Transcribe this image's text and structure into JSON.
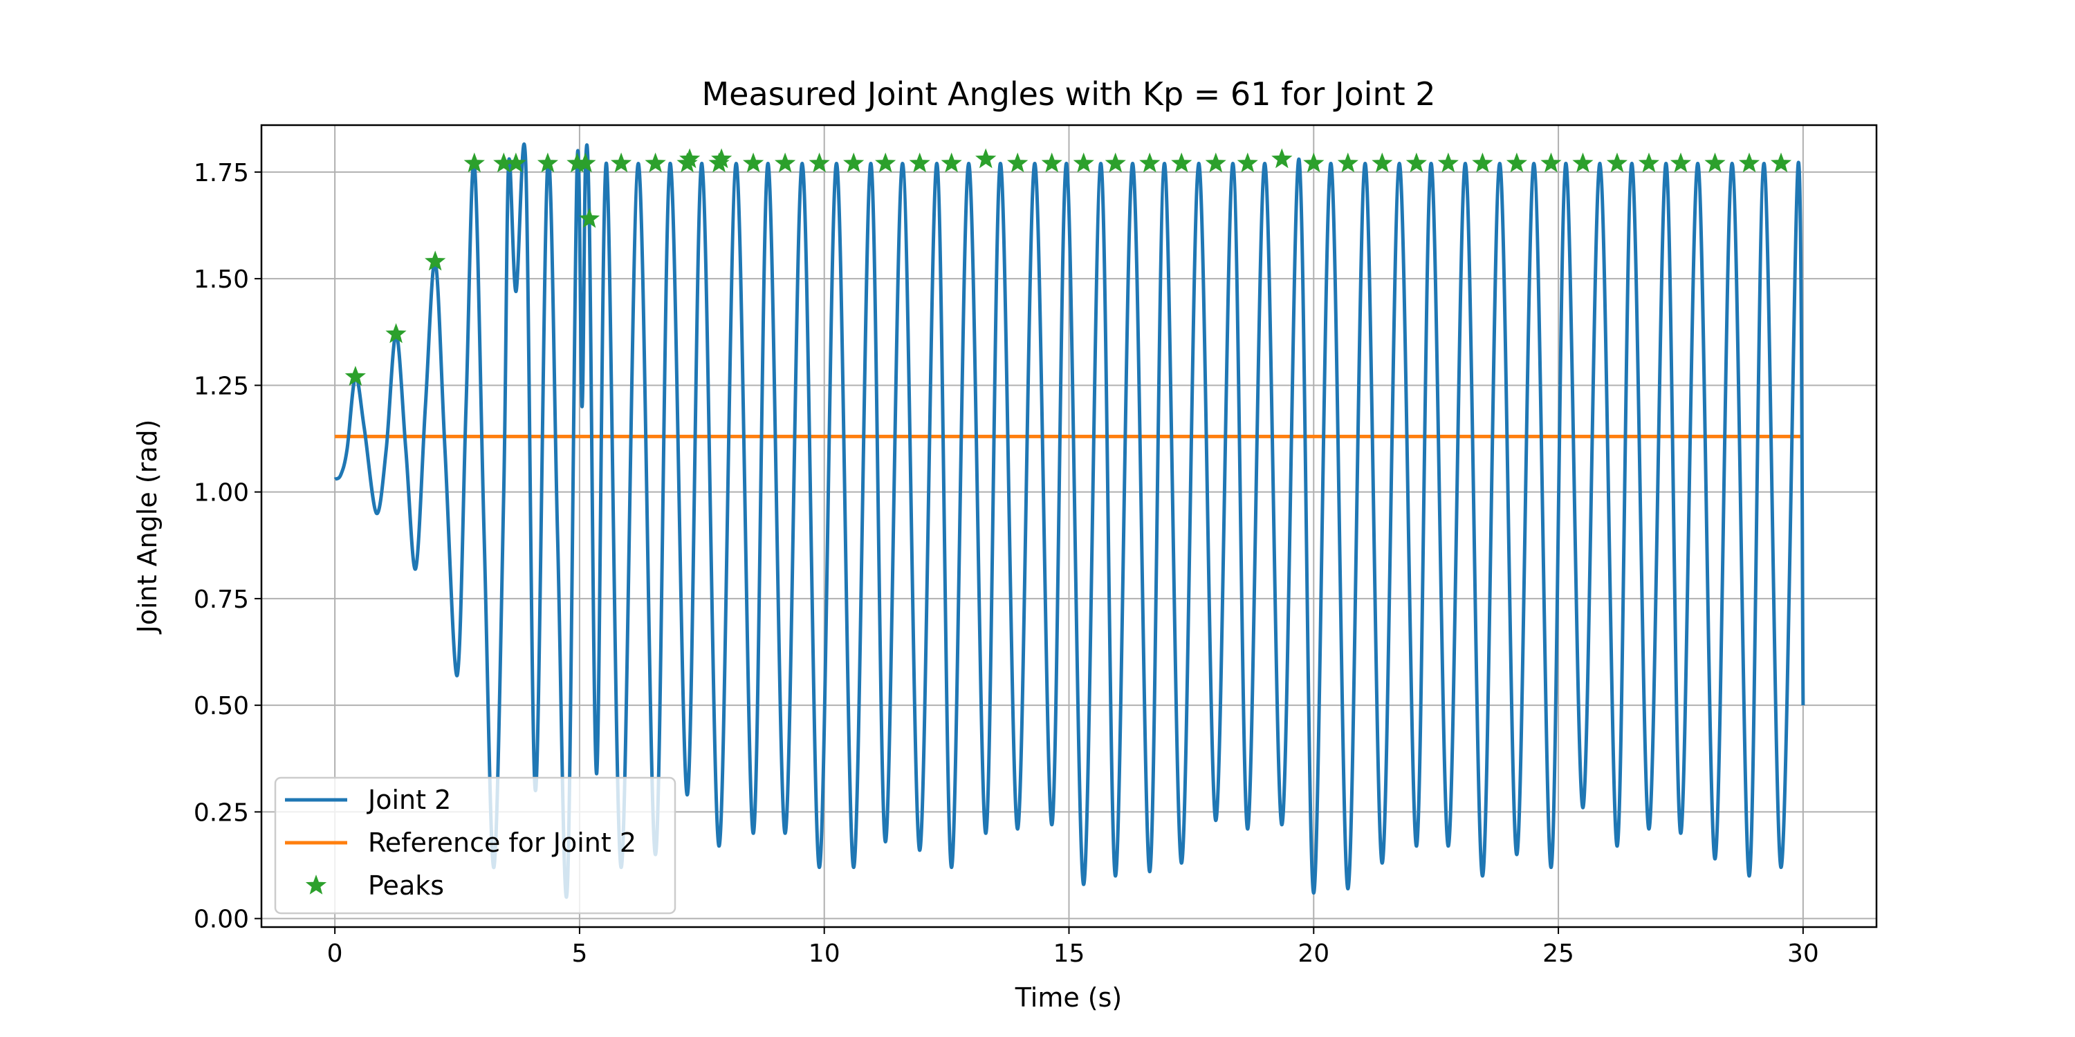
{
  "chart_data": {
    "type": "line",
    "title": "Measured Joint Angles with Kp = 61 for Joint 2",
    "xlabel": "Time (s)",
    "ylabel": "Joint Angle (rad)",
    "xlim": [
      -1.5,
      31.5
    ],
    "ylim": [
      -0.02,
      1.86
    ],
    "grid": true,
    "xticks": [
      0,
      5,
      10,
      15,
      20,
      25,
      30
    ],
    "xtick_labels": [
      "0",
      "5",
      "10",
      "15",
      "20",
      "25",
      "30"
    ],
    "yticks": [
      0.0,
      0.25,
      0.5,
      0.75,
      1.0,
      1.25,
      1.5,
      1.75
    ],
    "ytick_labels": [
      "0.00",
      "0.25",
      "0.50",
      "0.75",
      "1.00",
      "1.25",
      "1.50",
      "1.75"
    ],
    "legend_position": "lower-left",
    "colors": {
      "joint": "#1f77b4",
      "reference": "#ff7f0e",
      "peaks": "#2ca02c"
    },
    "series": [
      {
        "name": "Joint 2",
        "legend_label": "Joint 2",
        "x": [
          0,
          0.12,
          0.25,
          0.42,
          0.6,
          0.85,
          1.05,
          1.25,
          1.45,
          1.65,
          1.85,
          2.05,
          2.25,
          2.5,
          2.68,
          2.85,
          3.05,
          3.25,
          3.45,
          3.55,
          3.7,
          3.9,
          4.1,
          4.35,
          4.55,
          4.75,
          4.95,
          5.05,
          5.12,
          5.2,
          5.35,
          5.55,
          5.85,
          6.2,
          6.55,
          6.85,
          7.2,
          7.5,
          7.85,
          8.2,
          8.55,
          8.85,
          9.2,
          9.55,
          9.9,
          10.25,
          10.6,
          10.95,
          11.25,
          11.6,
          11.95,
          12.3,
          12.6,
          12.95,
          13.3,
          13.6,
          13.95,
          14.3,
          14.65,
          14.95,
          15.3,
          15.65,
          15.95,
          16.3,
          16.65,
          16.95,
          17.3,
          17.65,
          18.0,
          18.35,
          18.65,
          19.0,
          19.35,
          19.7,
          20.0,
          20.35,
          20.7,
          21.05,
          21.4,
          21.75,
          22.1,
          22.4,
          22.75,
          23.1,
          23.45,
          23.8,
          24.15,
          24.5,
          24.85,
          25.15,
          25.5,
          25.85,
          26.2,
          26.5,
          26.85,
          27.2,
          27.5,
          27.85,
          28.2,
          28.55,
          28.9,
          29.2,
          29.55,
          29.9,
          30.0
        ],
        "y": [
          1.03,
          1.04,
          1.1,
          1.27,
          1.15,
          0.95,
          1.1,
          1.37,
          1.1,
          0.82,
          1.2,
          1.54,
          1.1,
          0.57,
          1.2,
          1.77,
          0.9,
          0.12,
          1.0,
          1.77,
          1.47,
          1.77,
          0.3,
          1.77,
          0.9,
          0.07,
          1.77,
          1.2,
          1.76,
          1.63,
          0.34,
          1.77,
          0.12,
          1.77,
          0.15,
          1.77,
          0.29,
          1.77,
          0.17,
          1.77,
          0.2,
          1.77,
          0.2,
          1.77,
          0.12,
          1.77,
          0.12,
          1.77,
          0.18,
          1.77,
          0.16,
          1.77,
          0.12,
          1.77,
          0.2,
          1.77,
          0.21,
          1.77,
          0.22,
          1.77,
          0.08,
          1.77,
          0.1,
          1.77,
          0.11,
          1.77,
          0.13,
          1.77,
          0.23,
          1.77,
          0.21,
          1.77,
          0.22,
          1.78,
          0.06,
          1.77,
          0.07,
          1.77,
          0.13,
          1.77,
          0.17,
          1.77,
          0.17,
          1.77,
          0.1,
          1.77,
          0.15,
          1.77,
          0.12,
          1.77,
          0.26,
          1.77,
          0.17,
          1.77,
          0.21,
          1.77,
          0.2,
          1.77,
          0.14,
          1.77,
          0.1,
          1.77,
          0.12,
          1.77,
          0.5
        ]
      },
      {
        "name": "Reference for Joint 2",
        "legend_label": "Reference for Joint 2",
        "x": [
          0,
          30
        ],
        "y": [
          1.13,
          1.13
        ]
      },
      {
        "name": "Peaks",
        "legend_label": "Peaks",
        "x": [
          0.42,
          1.25,
          2.05,
          2.85,
          3.45,
          3.7,
          4.35,
          4.95,
          5.12,
          5.2,
          5.85,
          6.55,
          7.2,
          7.25,
          7.85,
          7.9,
          8.55,
          9.2,
          9.9,
          10.6,
          11.25,
          11.95,
          12.6,
          13.3,
          13.95,
          14.65,
          15.3,
          15.95,
          16.65,
          17.3,
          18.0,
          18.65,
          19.35,
          20.0,
          20.7,
          21.4,
          22.1,
          22.75,
          23.45,
          24.15,
          24.85,
          25.5,
          26.2,
          26.85,
          27.5,
          28.2,
          28.9,
          29.55
        ],
        "y": [
          1.27,
          1.37,
          1.54,
          1.77,
          1.77,
          1.77,
          1.77,
          1.77,
          1.77,
          1.64,
          1.77,
          1.77,
          1.77,
          1.78,
          1.77,
          1.78,
          1.77,
          1.77,
          1.77,
          1.77,
          1.77,
          1.77,
          1.77,
          1.78,
          1.77,
          1.77,
          1.77,
          1.77,
          1.77,
          1.77,
          1.77,
          1.77,
          1.78,
          1.77,
          1.77,
          1.77,
          1.77,
          1.77,
          1.77,
          1.77,
          1.77,
          1.77,
          1.77,
          1.77,
          1.77,
          1.77,
          1.77,
          1.77
        ]
      }
    ]
  }
}
